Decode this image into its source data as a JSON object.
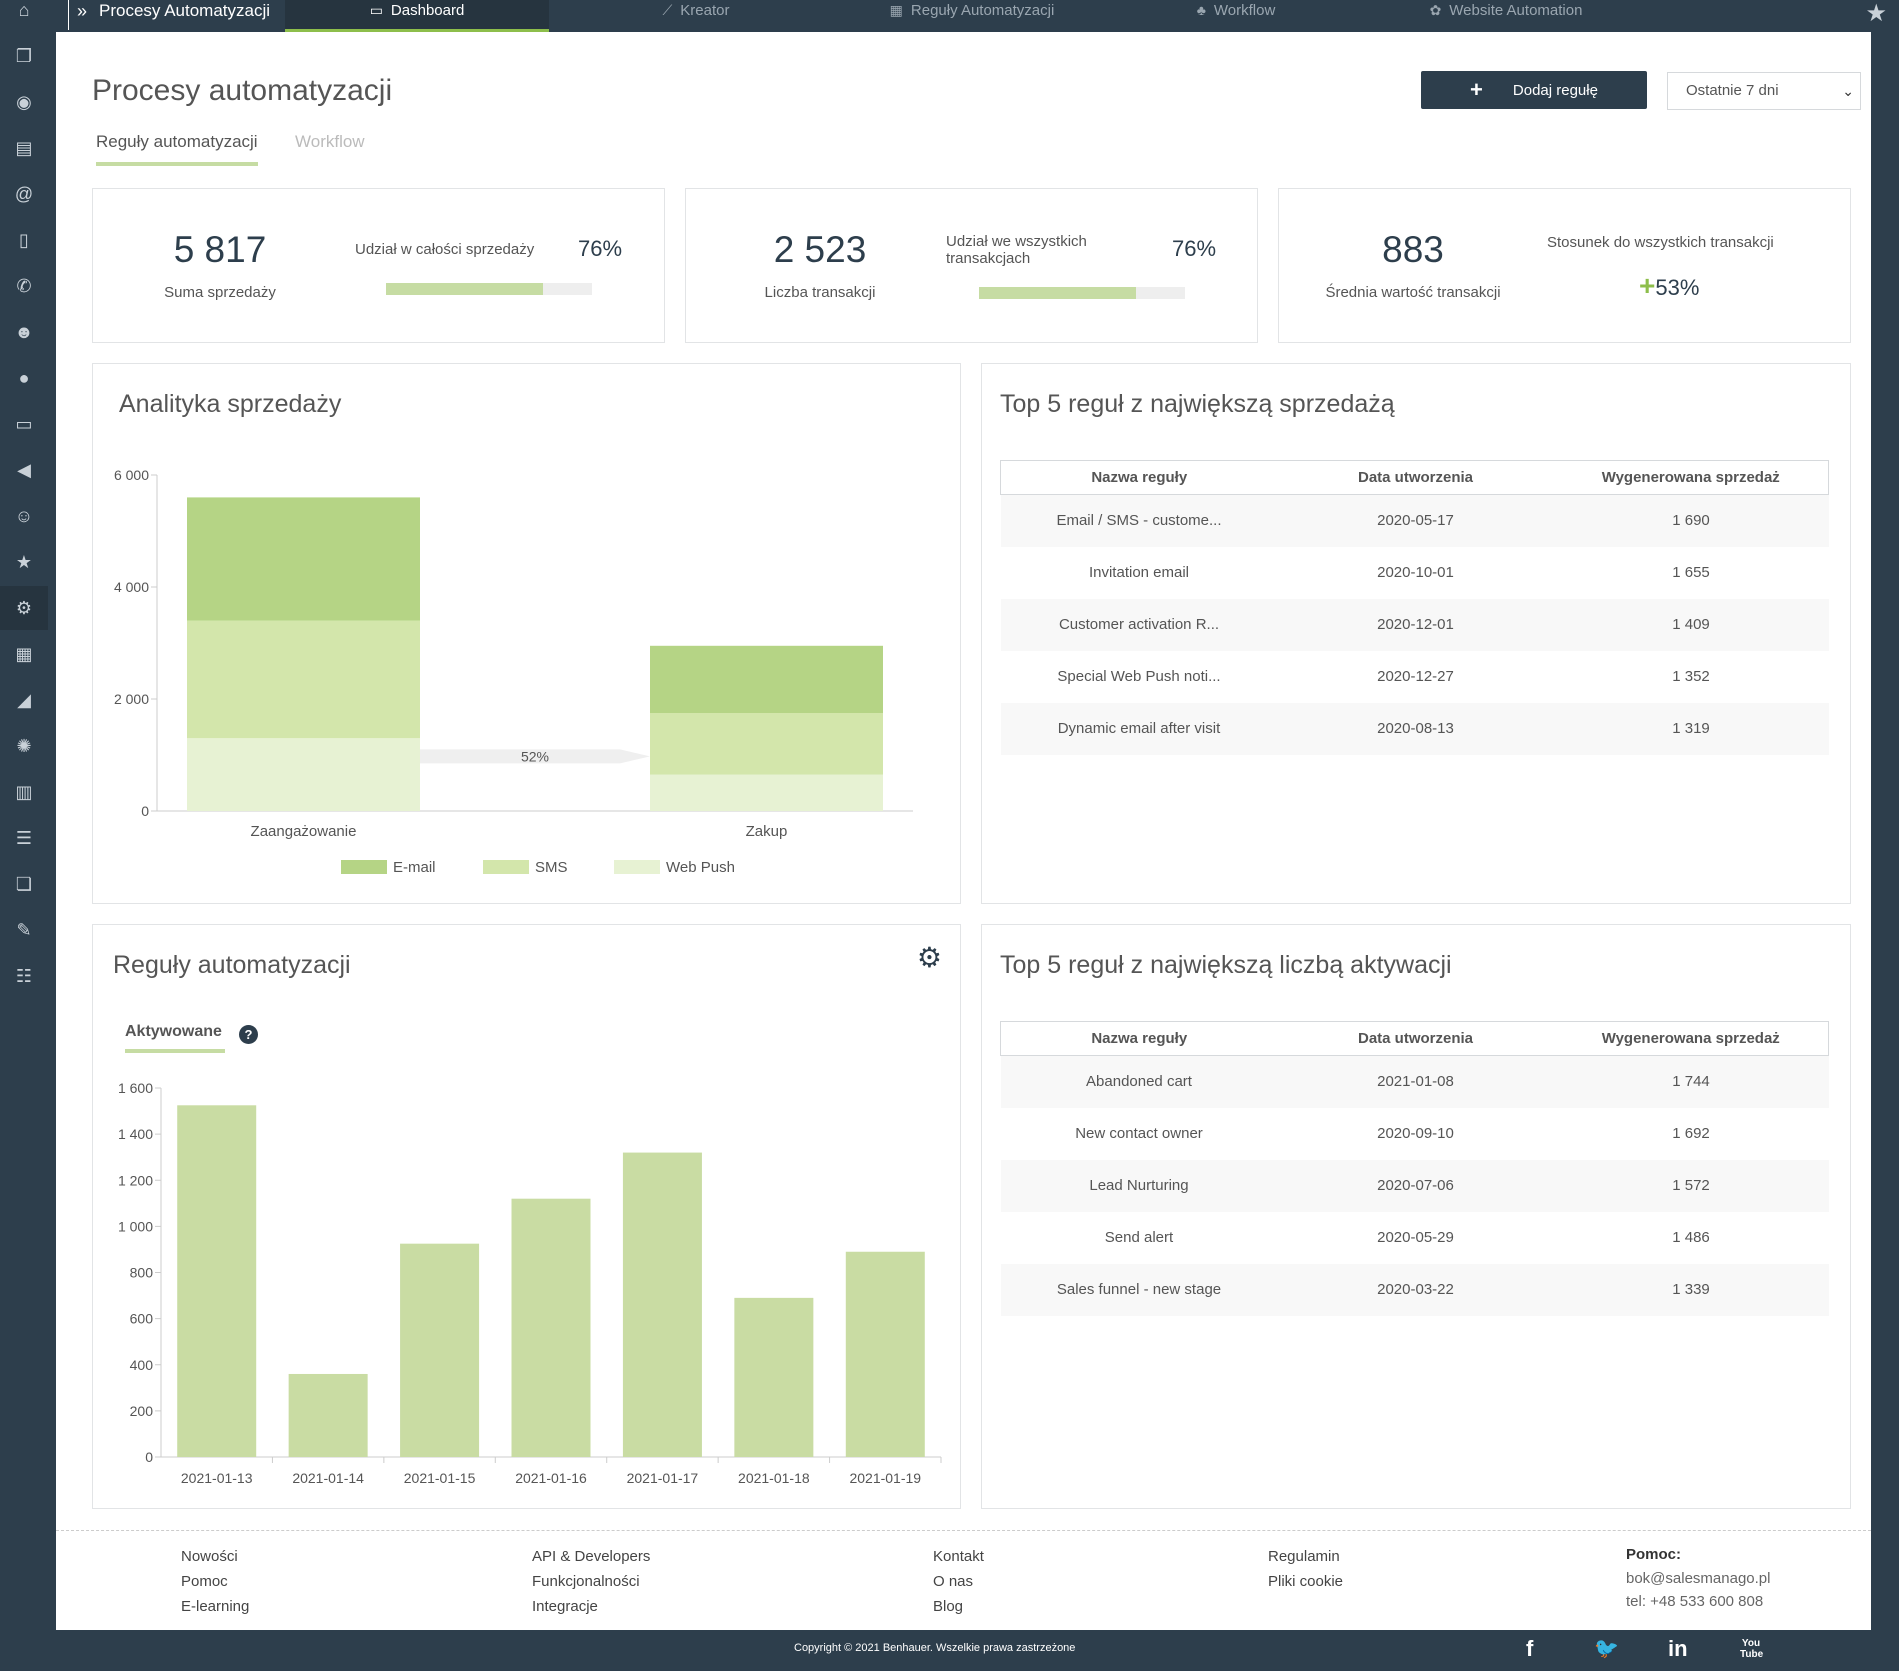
{
  "topbar": {
    "app_title": "Procesy Automatyzacji",
    "tabs": [
      {
        "label": "Dashboard",
        "icon": "laptop-icon"
      },
      {
        "label": "Kreator",
        "icon": "wand-icon"
      },
      {
        "label": "Reguły Automatyzacji",
        "icon": "grid-icon"
      },
      {
        "label": "Workflow",
        "icon": "sitemap-icon"
      },
      {
        "label": "Website Automation",
        "icon": "cogs-icon"
      }
    ]
  },
  "header": {
    "title": "Procesy automatyzacji",
    "add_button": "Dodaj regułę",
    "period": "Ostatnie 7 dni",
    "subtabs": [
      "Reguły automatyzacji",
      "Workflow"
    ]
  },
  "kpi": [
    {
      "value": "5 817",
      "label": "Suma sprzedaży",
      "metric": "Udział w całości sprzedaży",
      "pct": "76%",
      "fill": 0.76
    },
    {
      "value": "2 523",
      "label": "Liczba transakcji",
      "metric": "Udział we wszystkich transakcjach",
      "pct": "76%",
      "fill": 0.76
    },
    {
      "value": "883",
      "label": "Średnia wartość transakcji",
      "metric": "Stosunek do wszystkich transakcji",
      "pct": "53%",
      "plus": "+"
    }
  ],
  "sales_panel": {
    "title": "Analityka sprzedaży",
    "funnel_label": "52%"
  },
  "rules_panel": {
    "title": "Reguły automatyzacji",
    "tab": "Aktywowane",
    "help": "?"
  },
  "top_sales": {
    "title": "Top 5 reguł z największą sprzedażą",
    "headers": [
      "Nazwa reguły",
      "Data utworzenia",
      "Wygenerowana sprzedaż"
    ],
    "rows": [
      [
        "Email / SMS - custome...",
        "2020-05-17",
        "1 690"
      ],
      [
        "Invitation email",
        "2020-10-01",
        "1 655"
      ],
      [
        "Customer activation R...",
        "2020-12-01",
        "1 409"
      ],
      [
        "Special Web Push noti...",
        "2020-12-27",
        "1 352"
      ],
      [
        "Dynamic email after visit",
        "2020-08-13",
        "1 319"
      ]
    ]
  },
  "top_activations": {
    "title": "Top 5 reguł z największą liczbą aktywacji",
    "headers": [
      "Nazwa reguły",
      "Data utworzenia",
      "Wygenerowana sprzedaż"
    ],
    "rows": [
      [
        "Abandoned cart",
        "2021-01-08",
        "1 744"
      ],
      [
        "New contact owner",
        "2020-09-10",
        "1 692"
      ],
      [
        "Lead Nurturing",
        "2020-07-06",
        "1 572"
      ],
      [
        "Send alert",
        "2020-05-29",
        "1 486"
      ],
      [
        "Sales funnel - new stage",
        "2020-03-22",
        "1 339"
      ]
    ]
  },
  "chart_data": [
    {
      "type": "bar",
      "stacked": true,
      "categories": [
        "Zaangażowanie",
        "Zakup"
      ],
      "series": [
        {
          "name": "E-mail",
          "values": [
            2200,
            1200
          ],
          "color": "#b5d485"
        },
        {
          "name": "SMS",
          "values": [
            2100,
            1100
          ],
          "color": "#d3e6ab"
        },
        {
          "name": "Web Push",
          "values": [
            1300,
            650
          ],
          "color": "#e7f2d3"
        }
      ],
      "ylim": [
        0,
        6000
      ],
      "yticks": [
        "0",
        "2 000",
        "4 000",
        "6 000"
      ],
      "ytick_values": [
        0,
        2000,
        4000,
        6000
      ],
      "annotation": "52%",
      "legend": "bottom"
    },
    {
      "type": "bar",
      "categories": [
        "2021-01-13",
        "2021-01-14",
        "2021-01-15",
        "2021-01-16",
        "2021-01-17",
        "2021-01-18",
        "2021-01-19"
      ],
      "values": [
        1525,
        360,
        925,
        1120,
        1320,
        690,
        890
      ],
      "color": "#c9dca3",
      "ylim": [
        0,
        1600
      ],
      "yticks": [
        "0",
        "200",
        "400",
        "600",
        "800",
        "1 000",
        "1 200",
        "1 400",
        "1 600"
      ],
      "ytick_values": [
        0,
        200,
        400,
        600,
        800,
        1000,
        1200,
        1400,
        1600
      ]
    }
  ],
  "footer": {
    "col1": [
      "Nowości",
      "Pomoc",
      "E-learning"
    ],
    "col2": [
      "API & Developers",
      "Funkcjonalności",
      "Integracje"
    ],
    "col3": [
      "Kontakt",
      "O nas",
      "Blog"
    ],
    "col4": [
      "Regulamin",
      "Pliki cookie"
    ],
    "help_title": "Pomoc:",
    "email": "bok@salesmanago.pl",
    "phone": "tel: +48 533 600 808",
    "copyright": "Copyright © 2021 Benhauer. Wszelkie prawa zastrzeżone",
    "social": [
      "f",
      "🐦",
      "in",
      "You Tube"
    ]
  }
}
